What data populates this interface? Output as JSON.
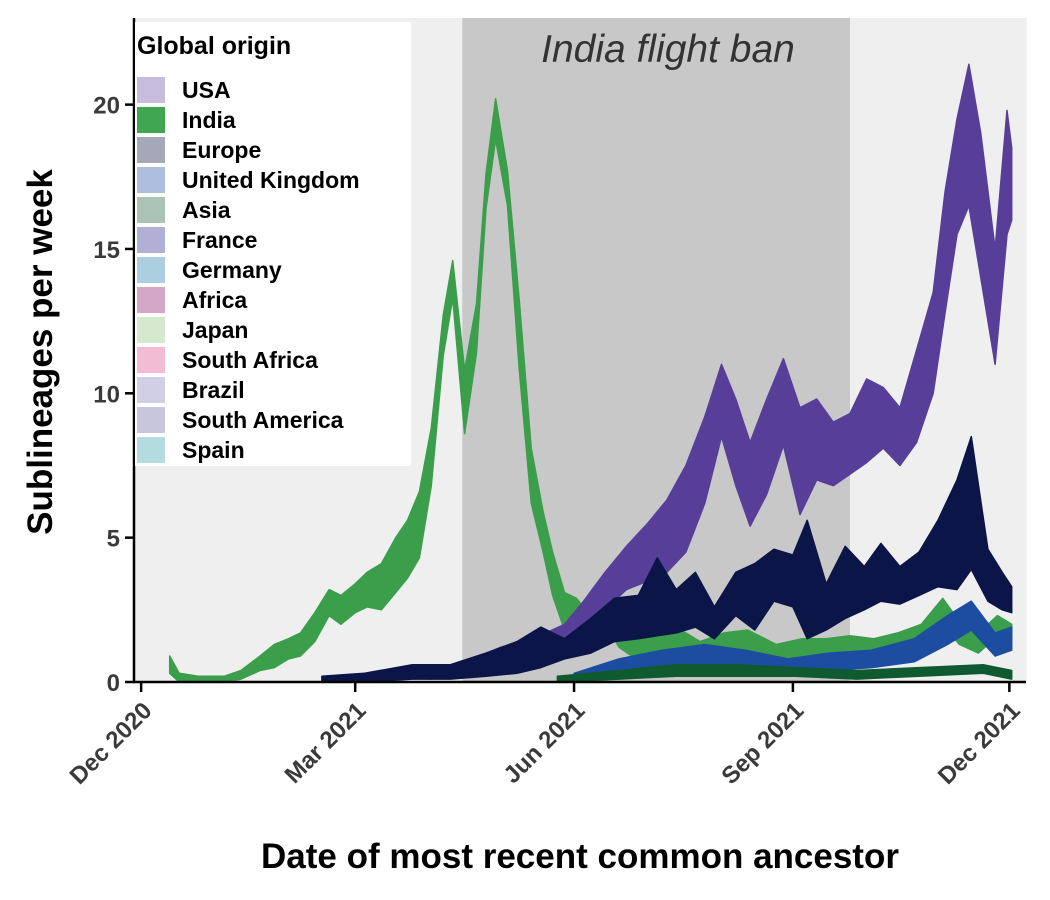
{
  "chart_data": {
    "type": "area",
    "xlabel": "Date of most recent common ancestor",
    "ylabel": "Sublineages per week",
    "x_domain": [
      "2020-11-28",
      "2021-12-08"
    ],
    "ylim": [
      0,
      23
    ],
    "y_ticks": [
      0,
      5,
      10,
      15,
      20
    ],
    "x_ticks": [
      {
        "date": "2020-12-01",
        "label": "Dec 2020"
      },
      {
        "date": "2021-03-01",
        "label": "Mar 2021"
      },
      {
        "date": "2021-06-01",
        "label": "Jun 2021"
      },
      {
        "date": "2021-09-01",
        "label": "Sep 2021"
      },
      {
        "date": "2021-12-01",
        "label": "Dec 2021"
      }
    ],
    "shaded_regions": [
      {
        "start": "2020-11-28",
        "end": "2021-04-15",
        "color": "#efefef"
      },
      {
        "start": "2021-04-15",
        "end": "2021-06-15",
        "color": "#c8c8c8"
      },
      {
        "start": "2021-06-15",
        "end": "2021-09-01",
        "color": "#c8c8c8"
      },
      {
        "start": "2021-09-01",
        "end": "2021-09-25",
        "color": "#c8c8c8"
      },
      {
        "start": "2021-09-25",
        "end": "2021-12-08",
        "color": "#efefef"
      }
    ],
    "annotation": {
      "text": "India flight ban",
      "start": "2021-04-26",
      "end": "2021-09-24"
    },
    "legend": {
      "title": "Global origin",
      "position": "top-left",
      "entries": [
        {
          "name": "USA",
          "color": "#c5bdd9"
        },
        {
          "name": "India",
          "color": "#41a651"
        },
        {
          "name": "Europe",
          "color": "#a5a8b8"
        },
        {
          "name": "United Kingdom",
          "color": "#adbfdc"
        },
        {
          "name": "Asia",
          "color": "#abc3b4"
        },
        {
          "name": "France",
          "color": "#b1afd6"
        },
        {
          "name": "Germany",
          "color": "#adcde0"
        },
        {
          "name": "Africa",
          "color": "#d4a7c9"
        },
        {
          "name": "Japan",
          "color": "#d4e9cd"
        },
        {
          "name": "South Africa",
          "color": "#f1bcd4"
        },
        {
          "name": "Brazil",
          "color": "#d1cfe5"
        },
        {
          "name": "South America",
          "color": "#c8c6dd"
        },
        {
          "name": "Spain",
          "color": "#b4dbe0"
        }
      ]
    },
    "series": [
      {
        "name": "India",
        "color": "#3a9e4b",
        "points": [
          [
            "2020-12-13",
            0.3,
            0.9
          ],
          [
            "2020-12-17",
            0.0,
            0.3
          ],
          [
            "2020-12-25",
            0.0,
            0.2
          ],
          [
            "2021-01-05",
            0.0,
            0.2
          ],
          [
            "2021-01-12",
            0.1,
            0.4
          ],
          [
            "2021-01-20",
            0.4,
            0.9
          ],
          [
            "2021-01-26",
            0.5,
            1.3
          ],
          [
            "2021-02-01",
            0.8,
            1.5
          ],
          [
            "2021-02-06",
            0.9,
            1.7
          ],
          [
            "2021-02-12",
            1.4,
            2.4
          ],
          [
            "2021-02-18",
            2.3,
            3.2
          ],
          [
            "2021-02-23",
            2.0,
            3.0
          ],
          [
            "2021-03-01",
            2.4,
            3.4
          ],
          [
            "2021-03-06",
            2.6,
            3.8
          ],
          [
            "2021-03-12",
            2.5,
            4.1
          ],
          [
            "2021-03-18",
            3.1,
            5.0
          ],
          [
            "2021-03-23",
            3.6,
            5.6
          ],
          [
            "2021-03-28",
            4.3,
            6.6
          ],
          [
            "2021-04-02",
            6.8,
            8.8
          ],
          [
            "2021-04-07",
            11.3,
            12.7
          ],
          [
            "2021-04-11",
            13.3,
            14.6
          ],
          [
            "2021-04-16",
            8.6,
            10.8
          ],
          [
            "2021-04-21",
            11.4,
            13.1
          ],
          [
            "2021-04-25",
            16.4,
            17.6
          ],
          [
            "2021-04-29",
            18.8,
            20.2
          ],
          [
            "2021-05-04",
            16.5,
            17.7
          ],
          [
            "2021-05-09",
            10.8,
            13.2
          ],
          [
            "2021-05-14",
            6.2,
            8.1
          ],
          [
            "2021-05-19",
            4.5,
            5.9
          ],
          [
            "2021-05-23",
            3.0,
            4.5
          ],
          [
            "2021-05-28",
            1.8,
            3.1
          ],
          [
            "2021-06-02",
            1.8,
            2.9
          ],
          [
            "2021-06-08",
            1.5,
            2.3
          ],
          [
            "2021-06-14",
            2.0,
            3.2
          ],
          [
            "2021-06-20",
            1.2,
            2.1
          ],
          [
            "2021-06-27",
            0.8,
            1.6
          ],
          [
            "2021-07-05",
            0.9,
            1.6
          ],
          [
            "2021-07-14",
            1.0,
            1.9
          ],
          [
            "2021-07-24",
            0.8,
            1.4
          ],
          [
            "2021-08-03",
            1.0,
            1.7
          ],
          [
            "2021-08-13",
            0.9,
            1.8
          ],
          [
            "2021-08-25",
            0.6,
            1.3
          ],
          [
            "2021-09-05",
            0.7,
            1.5
          ],
          [
            "2021-09-15",
            0.7,
            1.5
          ],
          [
            "2021-09-25",
            0.8,
            1.6
          ],
          [
            "2021-10-05",
            0.8,
            1.5
          ],
          [
            "2021-10-15",
            0.9,
            1.7
          ],
          [
            "2021-10-25",
            1.0,
            2.0
          ],
          [
            "2021-11-03",
            2.0,
            2.9
          ],
          [
            "2021-11-10",
            1.3,
            2.1
          ],
          [
            "2021-11-18",
            1.0,
            1.7
          ],
          [
            "2021-11-26",
            1.6,
            2.3
          ],
          [
            "2021-12-02",
            1.4,
            2.0
          ]
        ]
      },
      {
        "name": "USA",
        "color": "#573f99",
        "points": [
          [
            "2021-04-01",
            0.1,
            0.4
          ],
          [
            "2021-04-20",
            0.3,
            0.8
          ],
          [
            "2021-05-01",
            0.7,
            1.2
          ],
          [
            "2021-05-15",
            0.9,
            1.5
          ],
          [
            "2021-05-28",
            1.2,
            2.0
          ],
          [
            "2021-06-05",
            1.5,
            2.8
          ],
          [
            "2021-06-14",
            2.5,
            3.8
          ],
          [
            "2021-06-23",
            3.2,
            4.7
          ],
          [
            "2021-07-02",
            3.5,
            5.5
          ],
          [
            "2021-07-10",
            3.8,
            6.3
          ],
          [
            "2021-07-18",
            4.5,
            7.5
          ],
          [
            "2021-07-26",
            6.2,
            9.2
          ],
          [
            "2021-08-02",
            8.5,
            11.0
          ],
          [
            "2021-08-08",
            6.8,
            9.8
          ],
          [
            "2021-08-14",
            5.4,
            8.3
          ],
          [
            "2021-08-21",
            6.5,
            9.8
          ],
          [
            "2021-08-28",
            8.2,
            11.2
          ],
          [
            "2021-09-04",
            5.8,
            9.5
          ],
          [
            "2021-09-11",
            7.0,
            9.8
          ],
          [
            "2021-09-18",
            6.8,
            9.0
          ],
          [
            "2021-09-25",
            7.2,
            9.3
          ],
          [
            "2021-10-02",
            7.6,
            10.5
          ],
          [
            "2021-10-09",
            8.1,
            10.2
          ],
          [
            "2021-10-16",
            7.5,
            9.5
          ],
          [
            "2021-10-23",
            8.3,
            11.5
          ],
          [
            "2021-10-30",
            10.0,
            13.5
          ],
          [
            "2021-11-04",
            12.8,
            17.0
          ],
          [
            "2021-11-09",
            15.5,
            19.5
          ],
          [
            "2021-11-14",
            16.5,
            21.4
          ],
          [
            "2021-11-19",
            14.0,
            19.0
          ],
          [
            "2021-11-25",
            11.0,
            15.0
          ],
          [
            "2021-11-30",
            15.5,
            19.8
          ],
          [
            "2021-12-02",
            16.0,
            18.5
          ]
        ]
      },
      {
        "name": "United Kingdom",
        "color": "#0b1547",
        "points": [
          [
            "2021-02-15",
            0.0,
            0.2
          ],
          [
            "2021-03-05",
            0.0,
            0.3
          ],
          [
            "2021-03-25",
            0.1,
            0.6
          ],
          [
            "2021-04-10",
            0.1,
            0.6
          ],
          [
            "2021-04-25",
            0.2,
            1.0
          ],
          [
            "2021-05-08",
            0.3,
            1.4
          ],
          [
            "2021-05-18",
            0.5,
            1.9
          ],
          [
            "2021-05-28",
            0.8,
            1.5
          ],
          [
            "2021-06-08",
            1.0,
            2.2
          ],
          [
            "2021-06-18",
            1.4,
            2.9
          ],
          [
            "2021-06-28",
            1.5,
            3.0
          ],
          [
            "2021-07-06",
            1.6,
            4.3
          ],
          [
            "2021-07-14",
            1.7,
            3.2
          ],
          [
            "2021-07-22",
            1.9,
            3.8
          ],
          [
            "2021-07-30",
            1.5,
            2.6
          ],
          [
            "2021-08-08",
            2.3,
            3.8
          ],
          [
            "2021-08-16",
            1.8,
            4.1
          ],
          [
            "2021-08-24",
            2.8,
            4.6
          ],
          [
            "2021-09-01",
            2.6,
            4.4
          ],
          [
            "2021-09-07",
            1.5,
            5.6
          ],
          [
            "2021-09-15",
            1.8,
            3.4
          ],
          [
            "2021-09-23",
            2.2,
            4.7
          ],
          [
            "2021-10-01",
            2.5,
            4.0
          ],
          [
            "2021-10-08",
            2.8,
            4.8
          ],
          [
            "2021-10-16",
            2.7,
            4.0
          ],
          [
            "2021-10-24",
            3.0,
            4.5
          ],
          [
            "2021-11-01",
            3.3,
            5.6
          ],
          [
            "2021-11-09",
            3.2,
            7.0
          ],
          [
            "2021-11-15",
            3.9,
            8.5
          ],
          [
            "2021-11-22",
            2.8,
            4.6
          ],
          [
            "2021-11-28",
            2.5,
            3.8
          ],
          [
            "2021-12-02",
            2.4,
            3.3
          ]
        ]
      },
      {
        "name": "Europe",
        "color": "#1d4da0",
        "points": [
          [
            "2021-06-01",
            0.0,
            0.3
          ],
          [
            "2021-06-20",
            0.3,
            0.8
          ],
          [
            "2021-07-08",
            0.5,
            1.1
          ],
          [
            "2021-07-26",
            0.6,
            1.3
          ],
          [
            "2021-08-12",
            0.5,
            1.1
          ],
          [
            "2021-08-30",
            0.3,
            0.8
          ],
          [
            "2021-09-16",
            0.4,
            1.0
          ],
          [
            "2021-10-04",
            0.5,
            1.1
          ],
          [
            "2021-10-22",
            0.7,
            1.5
          ],
          [
            "2021-11-05",
            1.3,
            2.3
          ],
          [
            "2021-11-15",
            1.8,
            2.8
          ],
          [
            "2021-11-25",
            0.9,
            1.7
          ],
          [
            "2021-12-02",
            1.1,
            1.9
          ]
        ]
      },
      {
        "name": "Asia",
        "color": "#0f5a2e",
        "points": [
          [
            "2021-05-25",
            0.0,
            0.2
          ],
          [
            "2021-06-20",
            0.1,
            0.4
          ],
          [
            "2021-07-14",
            0.2,
            0.6
          ],
          [
            "2021-08-08",
            0.2,
            0.6
          ],
          [
            "2021-09-02",
            0.2,
            0.5
          ],
          [
            "2021-09-28",
            0.1,
            0.4
          ],
          [
            "2021-10-24",
            0.2,
            0.5
          ],
          [
            "2021-11-20",
            0.3,
            0.6
          ],
          [
            "2021-12-02",
            0.1,
            0.4
          ]
        ]
      }
    ]
  }
}
